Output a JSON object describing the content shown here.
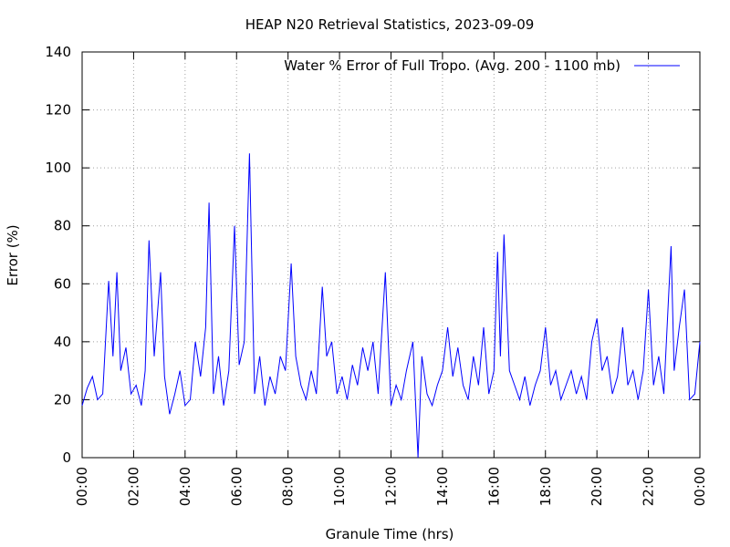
{
  "chart_data": {
    "type": "line",
    "title": "HEAP N20 Retrieval Statistics, 2023-09-09",
    "x_label": "Granule Time (hrs)",
    "y_label": "Error (%)",
    "legend": "top-right",
    "grid": true,
    "xlim": [
      0,
      24
    ],
    "ylim": [
      0,
      140
    ],
    "xticks": [
      {
        "value": 0,
        "label": "00:00"
      },
      {
        "value": 2,
        "label": "02:00"
      },
      {
        "value": 4,
        "label": "04:00"
      },
      {
        "value": 6,
        "label": "06:00"
      },
      {
        "value": 8,
        "label": "08:00"
      },
      {
        "value": 10,
        "label": "10:00"
      },
      {
        "value": 12,
        "label": "12:00"
      },
      {
        "value": 14,
        "label": "14:00"
      },
      {
        "value": 16,
        "label": "16:00"
      },
      {
        "value": 18,
        "label": "18:00"
      },
      {
        "value": 20,
        "label": "20:00"
      },
      {
        "value": 22,
        "label": "22:00"
      },
      {
        "value": 24,
        "label": "00:00"
      }
    ],
    "yticks": [
      0,
      20,
      40,
      60,
      80,
      100,
      120,
      140
    ],
    "x": [
      0,
      0.2,
      0.4,
      0.6,
      0.8,
      1.03,
      1.2,
      1.35,
      1.5,
      1.7,
      1.9,
      2.1,
      2.3,
      2.45,
      2.6,
      2.8,
      3.05,
      3.2,
      3.4,
      3.6,
      3.8,
      4.0,
      4.2,
      4.4,
      4.6,
      4.8,
      4.93,
      5.1,
      5.3,
      5.5,
      5.7,
      5.92,
      6.1,
      6.3,
      6.5,
      6.7,
      6.9,
      7.1,
      7.3,
      7.5,
      7.7,
      7.9,
      8.12,
      8.3,
      8.5,
      8.7,
      8.9,
      9.1,
      9.33,
      9.5,
      9.7,
      9.9,
      10.1,
      10.3,
      10.5,
      10.7,
      10.9,
      11.1,
      11.3,
      11.5,
      11.78,
      12.0,
      12.2,
      12.4,
      12.6,
      12.85,
      13.05,
      13.2,
      13.4,
      13.6,
      13.8,
      14.0,
      14.2,
      14.4,
      14.6,
      14.8,
      15.0,
      15.2,
      15.4,
      15.6,
      15.8,
      16.0,
      16.14,
      16.25,
      16.39,
      16.6,
      16.8,
      17.0,
      17.2,
      17.4,
      17.6,
      17.8,
      18.0,
      18.2,
      18.4,
      18.6,
      18.8,
      19.0,
      19.2,
      19.4,
      19.6,
      19.8,
      20.0,
      20.2,
      20.4,
      20.6,
      20.8,
      21.0,
      21.2,
      21.4,
      21.6,
      21.8,
      22.0,
      22.2,
      22.4,
      22.6,
      22.88,
      23.0,
      23.2,
      23.4,
      23.6,
      23.8,
      24.0
    ],
    "series": [
      {
        "name": "Water % Error of Full Tropo. (Avg. 200 - 1100 mb)",
        "color": "#0000ff",
        "values": [
          18,
          24,
          28,
          20,
          22,
          61,
          35,
          64,
          30,
          38,
          22,
          25,
          18,
          30,
          75,
          35,
          64,
          28,
          15,
          22,
          30,
          18,
          20,
          40,
          28,
          45,
          88,
          22,
          35,
          18,
          30,
          80,
          32,
          40,
          105,
          22,
          35,
          18,
          28,
          22,
          35,
          30,
          67,
          35,
          25,
          20,
          30,
          22,
          59,
          35,
          40,
          22,
          28,
          20,
          32,
          25,
          38,
          30,
          40,
          22,
          64,
          18,
          25,
          20,
          30,
          40,
          0,
          35,
          22,
          18,
          25,
          30,
          45,
          28,
          38,
          25,
          20,
          35,
          25,
          45,
          22,
          30,
          71,
          35,
          77,
          30,
          25,
          20,
          28,
          18,
          25,
          30,
          45,
          25,
          30,
          20,
          25,
          30,
          22,
          28,
          20,
          40,
          48,
          30,
          35,
          22,
          28,
          45,
          25,
          30,
          20,
          30,
          58,
          25,
          35,
          22,
          73,
          30,
          45,
          58,
          20,
          22,
          40
        ]
      }
    ]
  }
}
